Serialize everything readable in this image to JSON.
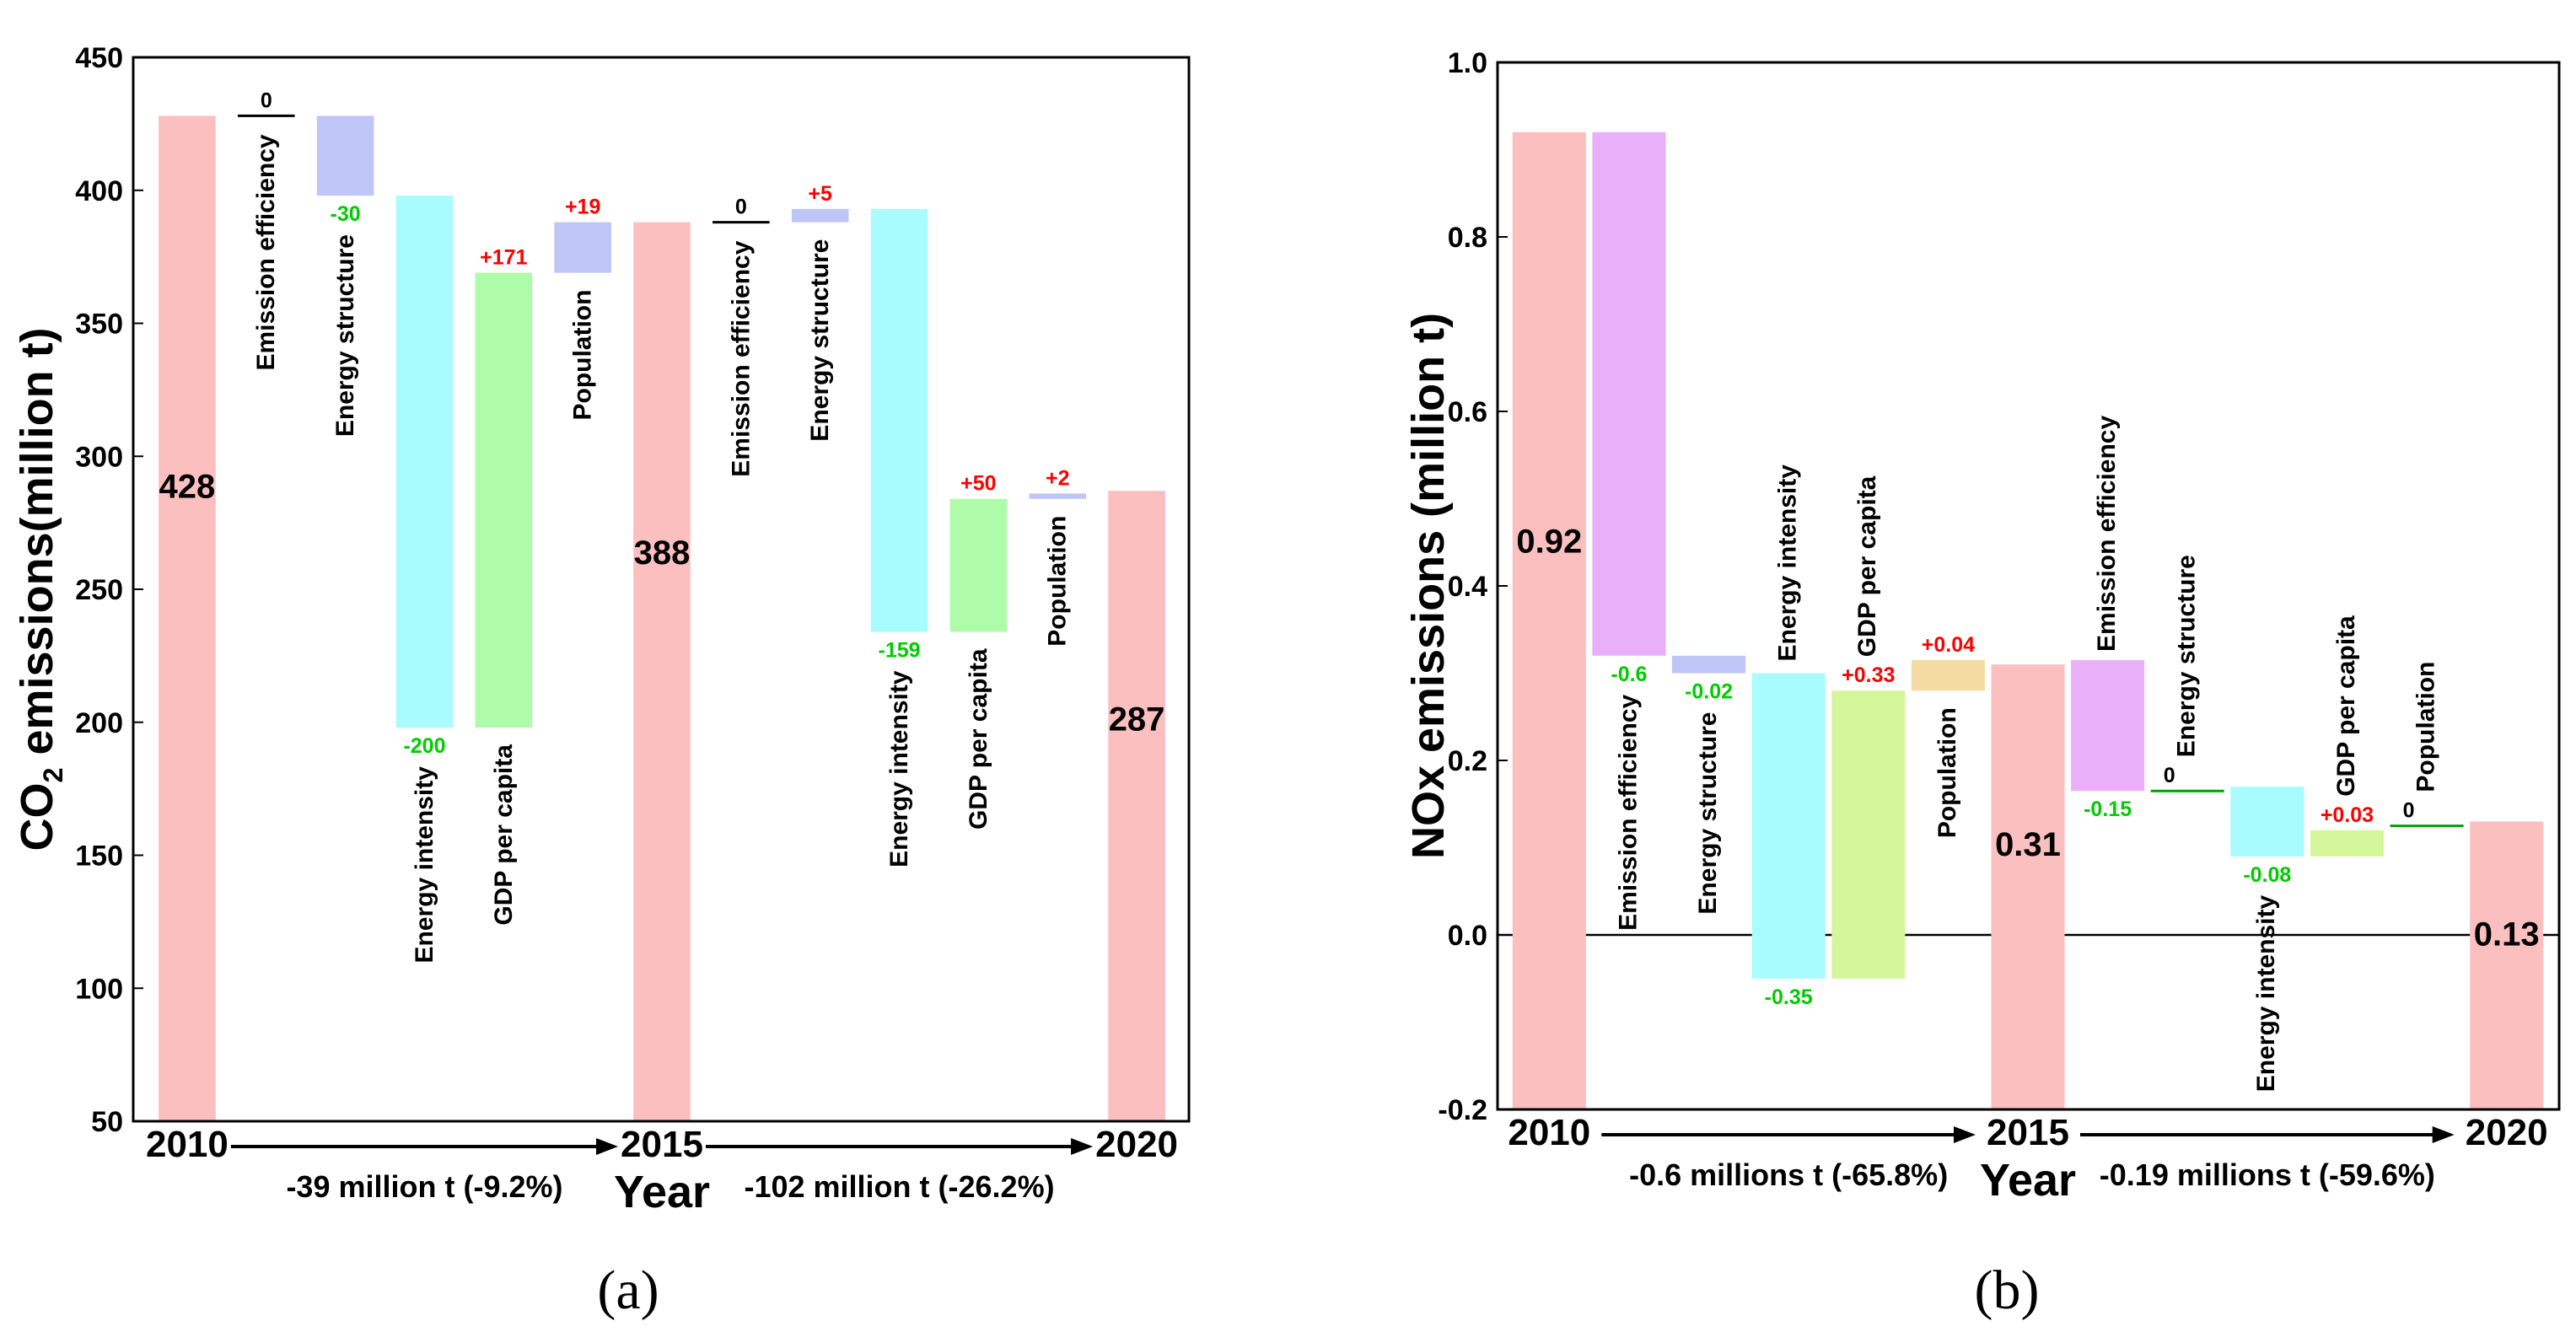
{
  "chart_data": [
    {
      "type": "waterfall",
      "panel_label": "(a)",
      "ylabel_prefix": "CO",
      "ylabel_sub": "2",
      "ylabel_suffix": " emissions(million t)",
      "xlabel": "Year",
      "ylim": [
        50,
        450
      ],
      "yticks": [
        "50",
        "100",
        "150",
        "200",
        "250",
        "300",
        "350",
        "400",
        "450"
      ],
      "ytick_values": [
        50,
        100,
        150,
        200,
        250,
        300,
        350,
        400,
        450
      ],
      "years": [
        "2010",
        "2015",
        "2020"
      ],
      "periods": [
        "-39 million t  (-9.2%)",
        "-102 million t  (-26.2%)"
      ],
      "bars": [
        {
          "kind": "total",
          "year": "2010",
          "value": 428,
          "label": "428"
        },
        {
          "kind": "delta",
          "factor": "Emission efficiency",
          "from": 428,
          "to": 428,
          "label": "0",
          "sign": "zero"
        },
        {
          "kind": "delta",
          "factor": "Energy structure",
          "from": 428,
          "to": 398,
          "label": "-30",
          "sign": "neg"
        },
        {
          "kind": "delta",
          "factor": "Energy intensity",
          "from": 398,
          "to": 198,
          "label": "-200",
          "sign": "neg"
        },
        {
          "kind": "delta",
          "factor": "GDP per capita",
          "from": 198,
          "to": 369,
          "label": "+171",
          "sign": "pos"
        },
        {
          "kind": "delta",
          "factor": "Population",
          "from": 369,
          "to": 388,
          "label": "+19",
          "sign": "pos"
        },
        {
          "kind": "total",
          "year": "2015",
          "value": 388,
          "label": "388"
        },
        {
          "kind": "delta",
          "factor": "Emission efficiency",
          "from": 388,
          "to": 388,
          "label": "0",
          "sign": "zero"
        },
        {
          "kind": "delta",
          "factor": "Energy structure",
          "from": 388,
          "to": 393,
          "label": "+5",
          "sign": "pos"
        },
        {
          "kind": "delta",
          "factor": "Energy intensity",
          "from": 393,
          "to": 234,
          "label": "-159",
          "sign": "neg"
        },
        {
          "kind": "delta",
          "factor": "GDP per capita",
          "from": 234,
          "to": 284,
          "label": "+50",
          "sign": "pos"
        },
        {
          "kind": "delta",
          "factor": "Population",
          "from": 284,
          "to": 286,
          "label": "+2",
          "sign": "pos"
        },
        {
          "kind": "total",
          "year": "2020",
          "value": 287,
          "label": "287"
        }
      ]
    },
    {
      "type": "waterfall",
      "panel_label": "(b)",
      "ylabel": "NOx emissions (million t)",
      "xlabel": "Year",
      "ylim": [
        -0.2,
        1.0
      ],
      "yticks": [
        "-0.2",
        "0.0",
        "0.2",
        "0.4",
        "0.6",
        "0.8",
        "1.0"
      ],
      "ytick_values": [
        -0.2,
        0.0,
        0.2,
        0.4,
        0.6,
        0.8,
        1.0
      ],
      "years": [
        "2010",
        "2015",
        "2020"
      ],
      "periods": [
        "-0.6 millions t (-65.8%)",
        "-0.19 millions t (-59.6%)"
      ],
      "bars": [
        {
          "kind": "total",
          "year": "2010",
          "value": 0.92,
          "label": "0.92"
        },
        {
          "kind": "delta",
          "factor": "Emission efficiency",
          "from": 0.92,
          "to": 0.32,
          "label": "-0.6",
          "sign": "neg"
        },
        {
          "kind": "delta",
          "factor": "Energy structure",
          "from": 0.32,
          "to": 0.3,
          "label": "-0.02",
          "sign": "neg"
        },
        {
          "kind": "delta",
          "factor": "Energy intensity",
          "from": 0.3,
          "to": -0.05,
          "label": "-0.35",
          "sign": "neg"
        },
        {
          "kind": "delta",
          "factor": "GDP per capita",
          "from": -0.05,
          "to": 0.28,
          "label": "+0.33",
          "sign": "pos"
        },
        {
          "kind": "delta",
          "factor": "Population",
          "from": 0.28,
          "to": 0.315,
          "label": "+0.04",
          "sign": "pos"
        },
        {
          "kind": "total",
          "year": "2015",
          "value": 0.31,
          "label": "0.31"
        },
        {
          "kind": "delta",
          "factor": "Emission efficiency",
          "from": 0.315,
          "to": 0.165,
          "label": "-0.15",
          "sign": "neg"
        },
        {
          "kind": "delta",
          "factor": "Energy structure",
          "from": 0.165,
          "to": 0.165,
          "label": "0",
          "sign": "zero"
        },
        {
          "kind": "delta",
          "factor": "Energy intensity",
          "from": 0.17,
          "to": 0.09,
          "label": "-0.08",
          "sign": "neg"
        },
        {
          "kind": "delta",
          "factor": "GDP per capita",
          "from": 0.09,
          "to": 0.12,
          "label": "+0.03",
          "sign": "pos"
        },
        {
          "kind": "delta",
          "factor": "Population",
          "from": 0.125,
          "to": 0.125,
          "label": "0",
          "sign": "zero"
        },
        {
          "kind": "total",
          "year": "2020",
          "value": 0.13,
          "label": "0.13"
        }
      ]
    }
  ],
  "colors": {
    "total": "#fbbfbf",
    "Emission efficiency": "#e9b0f9",
    "Energy structure": "#bfc5f6",
    "Energy intensity": "#a9fcfd",
    "GDP per capita": "#aefba9",
    "Population": "#bfc5f6",
    "b_Emission efficiency": "#e9b0f9",
    "b_Energy structure": "#bfc5f6",
    "b_Energy intensity": "#a9fcfd",
    "b_GDP per capita": "#d6f69c",
    "b_Population": "#f3dca2",
    "pos_text": "#ff0000",
    "neg_text": "#00cc00",
    "zero_text": "#000000"
  }
}
